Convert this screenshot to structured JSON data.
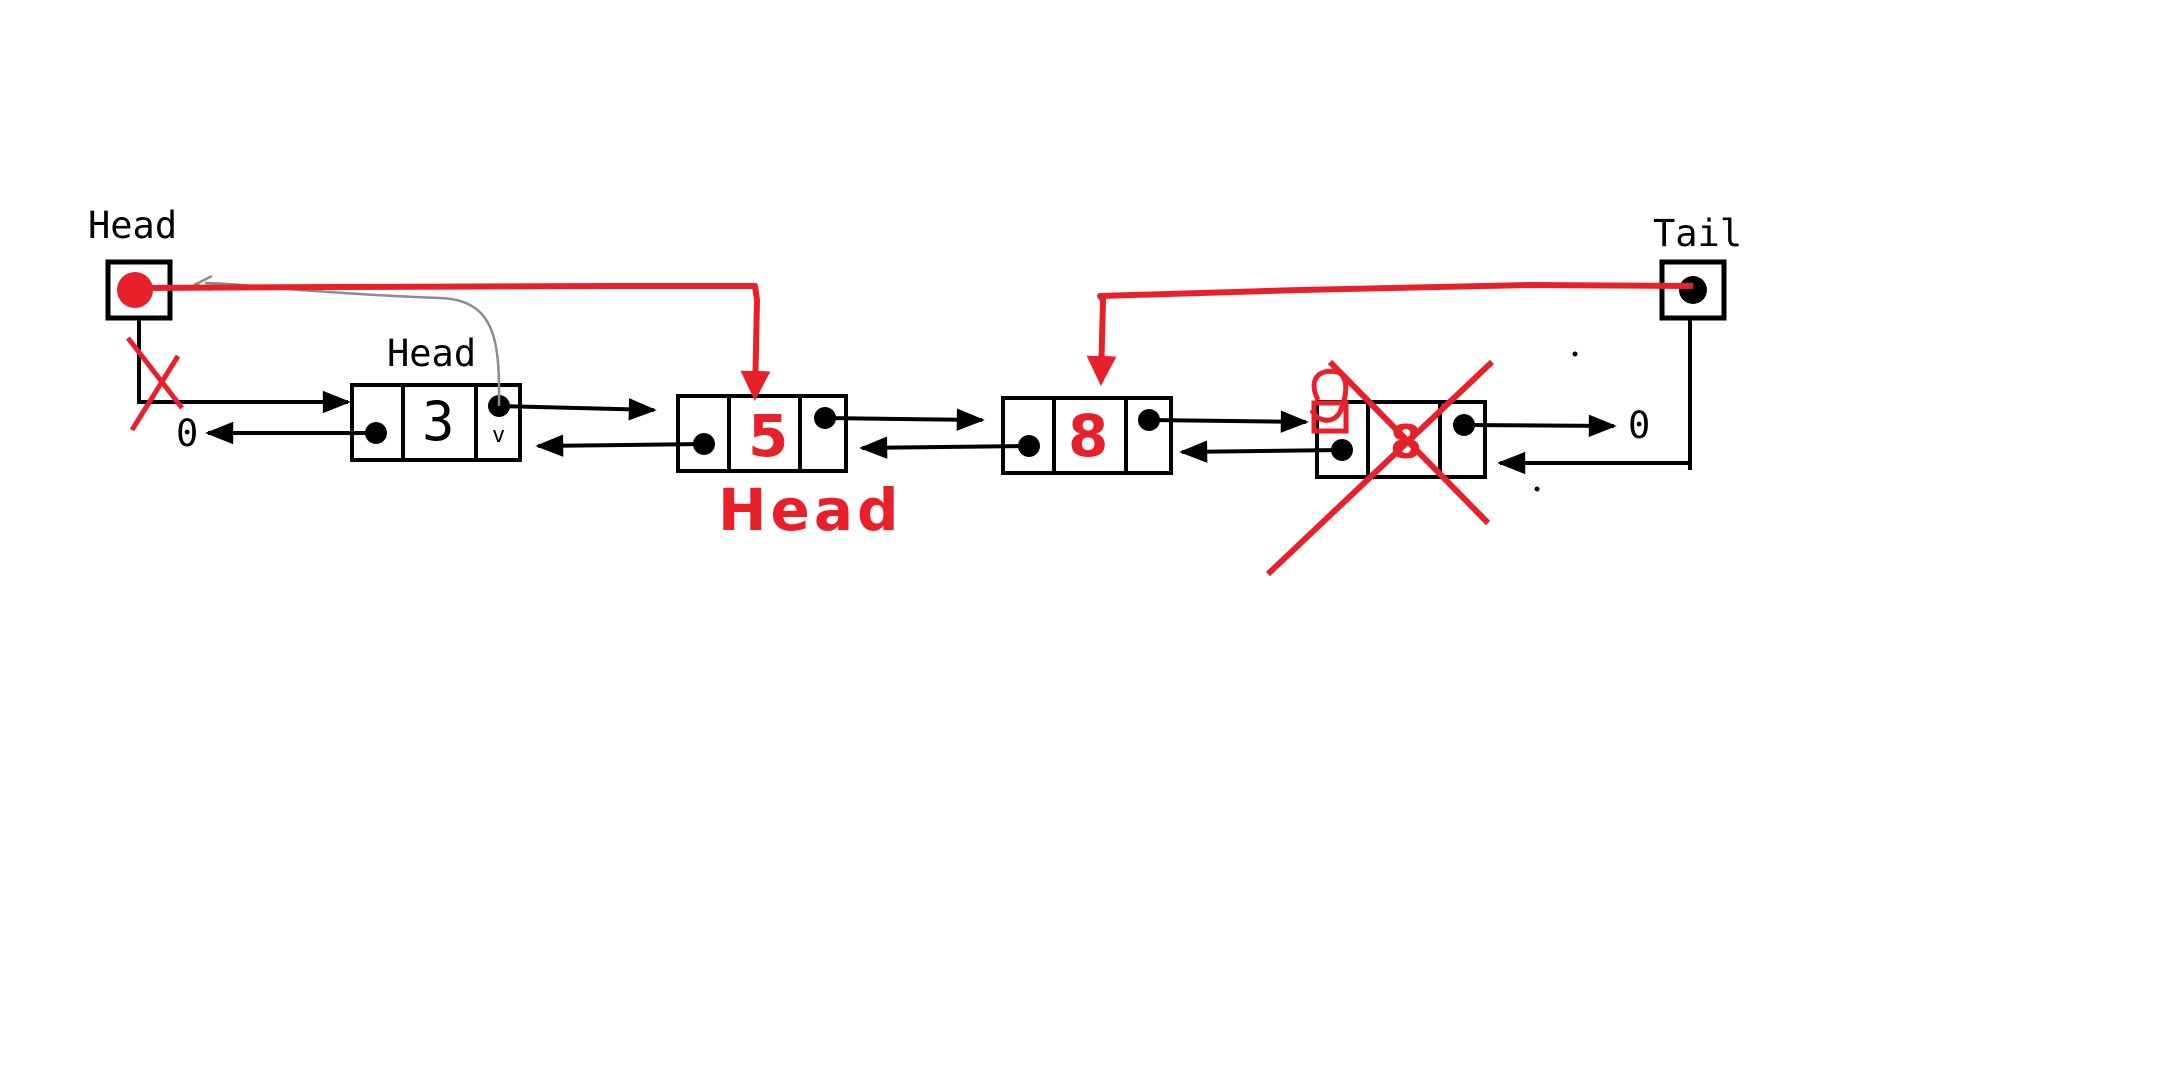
{
  "labels": {
    "head_pointer": "Head",
    "tail_pointer": "Tail",
    "node1_head": "Head",
    "new_head": "Head"
  },
  "nodes": [
    {
      "value": "3",
      "mark": "v"
    },
    {
      "value": "5"
    },
    {
      "value": "8"
    },
    {
      "value": "8"
    }
  ],
  "nulls": {
    "left": "0",
    "right": "0"
  },
  "colors": {
    "ink": "#000000",
    "edit": "#e8202a",
    "old_link": "#8c8c8c"
  }
}
